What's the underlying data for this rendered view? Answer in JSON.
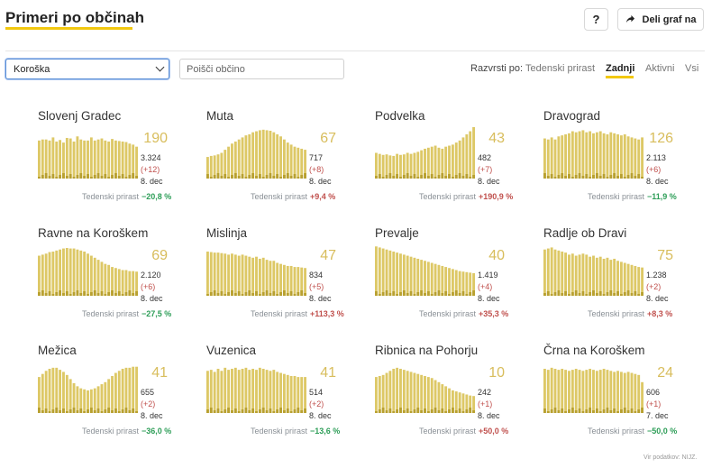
{
  "header": {
    "title": "Primeri po občinah",
    "help_label": "?",
    "share_label": "Deli graf na"
  },
  "controls": {
    "region_value": "Koroška",
    "search_placeholder": "Poišči občino",
    "sort_label": "Razvrsti po:",
    "sort_options": [
      "Tedenski prirast",
      "Zadnji",
      "Aktivni",
      "Vsi"
    ],
    "sort_active": "Zadnji"
  },
  "colors": {
    "bar": "#ddc866",
    "bar_low": "#b8a030",
    "highlight": "#f2c80f",
    "negative_growth": "#2e9e58",
    "positive_growth": "#c0504d"
  },
  "chart_data": [
    {
      "type": "bar",
      "title": "Slovenj Gradec",
      "active": "190",
      "total": "3.324",
      "delta": "(+12)",
      "date": "8. dec",
      "growth_label": "Tedenski prirast",
      "growth": "−20,8 %",
      "growth_sign": "neg",
      "values": [
        0.74,
        0.76,
        0.76,
        0.74,
        0.8,
        0.72,
        0.75,
        0.7,
        0.79,
        0.78,
        0.72,
        0.82,
        0.76,
        0.74,
        0.74,
        0.8,
        0.74,
        0.76,
        0.78,
        0.74,
        0.72,
        0.77,
        0.74,
        0.73,
        0.72,
        0.71,
        0.68,
        0.66,
        0.62
      ]
    },
    {
      "type": "bar",
      "title": "Muta",
      "active": "67",
      "total": "717",
      "delta": "(+8)",
      "date": "8. dec",
      "growth_label": "Tedenski prirast",
      "growth": "+9,4 %",
      "growth_sign": "pos",
      "values": [
        0.42,
        0.44,
        0.45,
        0.47,
        0.5,
        0.56,
        0.62,
        0.68,
        0.72,
        0.76,
        0.8,
        0.84,
        0.86,
        0.9,
        0.92,
        0.94,
        0.95,
        0.94,
        0.93,
        0.9,
        0.86,
        0.82,
        0.76,
        0.7,
        0.66,
        0.62,
        0.6,
        0.58,
        0.56
      ]
    },
    {
      "type": "bar",
      "title": "Podvelka",
      "active": "43",
      "total": "482",
      "delta": "(+7)",
      "date": "8. dec",
      "growth_label": "Tedenski prirast",
      "growth": "+190,9 %",
      "growth_sign": "pos",
      "values": [
        0.5,
        0.48,
        0.46,
        0.47,
        0.45,
        0.44,
        0.48,
        0.46,
        0.47,
        0.5,
        0.48,
        0.5,
        0.52,
        0.55,
        0.58,
        0.6,
        0.62,
        0.64,
        0.6,
        0.58,
        0.62,
        0.64,
        0.66,
        0.7,
        0.74,
        0.8,
        0.86,
        0.92,
        1.0
      ]
    },
    {
      "type": "bar",
      "title": "Dravograd",
      "active": "126",
      "total": "2.113",
      "delta": "(+6)",
      "date": "8. dec",
      "growth_label": "Tedenski prirast",
      "growth": "−11,9 %",
      "growth_sign": "neg",
      "values": [
        0.78,
        0.76,
        0.8,
        0.76,
        0.82,
        0.84,
        0.86,
        0.88,
        0.92,
        0.9,
        0.92,
        0.94,
        0.9,
        0.92,
        0.88,
        0.9,
        0.92,
        0.88,
        0.86,
        0.9,
        0.88,
        0.86,
        0.84,
        0.86,
        0.82,
        0.8,
        0.78,
        0.76,
        0.8
      ]
    },
    {
      "type": "bar",
      "title": "Ravne na Koroškem",
      "active": "69",
      "total": "2.120",
      "delta": "(+6)",
      "date": "8. dec",
      "growth_label": "Tedenski prirast",
      "growth": "−27,5 %",
      "growth_sign": "neg",
      "values": [
        0.78,
        0.8,
        0.82,
        0.85,
        0.86,
        0.88,
        0.9,
        0.92,
        0.93,
        0.92,
        0.92,
        0.9,
        0.88,
        0.86,
        0.82,
        0.78,
        0.74,
        0.7,
        0.66,
        0.62,
        0.6,
        0.56,
        0.54,
        0.52,
        0.5,
        0.5,
        0.48,
        0.48,
        0.47
      ]
    },
    {
      "type": "bar",
      "title": "Mislinja",
      "active": "47",
      "total": "834",
      "delta": "(+5)",
      "date": "8. dec",
      "growth_label": "Tedenski prirast",
      "growth": "+113,3 %",
      "growth_sign": "pos",
      "values": [
        0.86,
        0.85,
        0.84,
        0.84,
        0.83,
        0.82,
        0.8,
        0.82,
        0.8,
        0.78,
        0.8,
        0.78,
        0.76,
        0.74,
        0.76,
        0.72,
        0.74,
        0.7,
        0.68,
        0.68,
        0.64,
        0.62,
        0.6,
        0.58,
        0.58,
        0.56,
        0.56,
        0.55,
        0.54
      ]
    },
    {
      "type": "bar",
      "title": "Prevalje",
      "active": "40",
      "total": "1.419",
      "delta": "(+4)",
      "date": "8. dec",
      "growth_label": "Tedenski prirast",
      "growth": "+35,3 %",
      "growth_sign": "pos",
      "values": [
        0.96,
        0.94,
        0.92,
        0.9,
        0.88,
        0.86,
        0.84,
        0.82,
        0.8,
        0.78,
        0.76,
        0.74,
        0.72,
        0.7,
        0.68,
        0.66,
        0.64,
        0.62,
        0.6,
        0.58,
        0.56,
        0.54,
        0.52,
        0.5,
        0.48,
        0.47,
        0.46,
        0.45,
        0.44
      ]
    },
    {
      "type": "bar",
      "title": "Radlje ob Dravi",
      "active": "75",
      "total": "1.238",
      "delta": "(+2)",
      "date": "8. dec",
      "growth_label": "Tedenski prirast",
      "growth": "+8,3 %",
      "growth_sign": "pos",
      "values": [
        0.9,
        0.92,
        0.94,
        0.9,
        0.88,
        0.86,
        0.84,
        0.8,
        0.82,
        0.78,
        0.8,
        0.82,
        0.8,
        0.76,
        0.78,
        0.74,
        0.76,
        0.72,
        0.74,
        0.7,
        0.72,
        0.68,
        0.66,
        0.64,
        0.62,
        0.6,
        0.58,
        0.56,
        0.55
      ]
    },
    {
      "type": "bar",
      "title": "Mežica",
      "active": "41",
      "total": "655",
      "delta": "(+2)",
      "date": "8. dec",
      "growth_label": "Tedenski prirast",
      "growth": "−36,0 %",
      "growth_sign": "neg",
      "values": [
        0.7,
        0.76,
        0.82,
        0.86,
        0.88,
        0.88,
        0.84,
        0.8,
        0.74,
        0.66,
        0.58,
        0.52,
        0.48,
        0.46,
        0.44,
        0.46,
        0.48,
        0.52,
        0.56,
        0.6,
        0.66,
        0.72,
        0.78,
        0.82,
        0.86,
        0.88,
        0.88,
        0.9,
        0.9
      ]
    },
    {
      "type": "bar",
      "title": "Vuzenica",
      "active": "41",
      "total": "514",
      "delta": "(+2)",
      "date": "8. dec",
      "growth_label": "Tedenski prirast",
      "growth": "−13,6 %",
      "growth_sign": "neg",
      "values": [
        0.82,
        0.84,
        0.8,
        0.86,
        0.82,
        0.88,
        0.84,
        0.86,
        0.88,
        0.84,
        0.86,
        0.88,
        0.84,
        0.86,
        0.84,
        0.88,
        0.86,
        0.84,
        0.82,
        0.84,
        0.8,
        0.78,
        0.76,
        0.74,
        0.72,
        0.72,
        0.7,
        0.7,
        0.7
      ]
    },
    {
      "type": "bar",
      "title": "Ribnica na Pohorju",
      "active": "10",
      "total": "242",
      "delta": "(+1)",
      "date": "8. dec",
      "growth_label": "Tedenski prirast",
      "growth": "+50,0 %",
      "growth_sign": "pos",
      "values": [
        0.7,
        0.72,
        0.74,
        0.78,
        0.82,
        0.86,
        0.88,
        0.86,
        0.84,
        0.82,
        0.8,
        0.78,
        0.76,
        0.74,
        0.72,
        0.7,
        0.68,
        0.64,
        0.6,
        0.56,
        0.52,
        0.48,
        0.44,
        0.42,
        0.4,
        0.38,
        0.36,
        0.34,
        0.33
      ]
    },
    {
      "type": "bar",
      "title": "Črna na Koroškem",
      "active": "24",
      "total": "606",
      "delta": "(+1)",
      "date": "7. dec",
      "growth_label": "Tedenski prirast",
      "growth": "−50,0 %",
      "growth_sign": "neg",
      "values": [
        0.86,
        0.84,
        0.88,
        0.86,
        0.84,
        0.86,
        0.84,
        0.82,
        0.84,
        0.86,
        0.84,
        0.82,
        0.84,
        0.86,
        0.84,
        0.82,
        0.84,
        0.86,
        0.84,
        0.82,
        0.8,
        0.82,
        0.8,
        0.78,
        0.8,
        0.78,
        0.76,
        0.74,
        0.6
      ]
    }
  ],
  "footer": {
    "source": "Vir podatkov: NIJZ."
  }
}
